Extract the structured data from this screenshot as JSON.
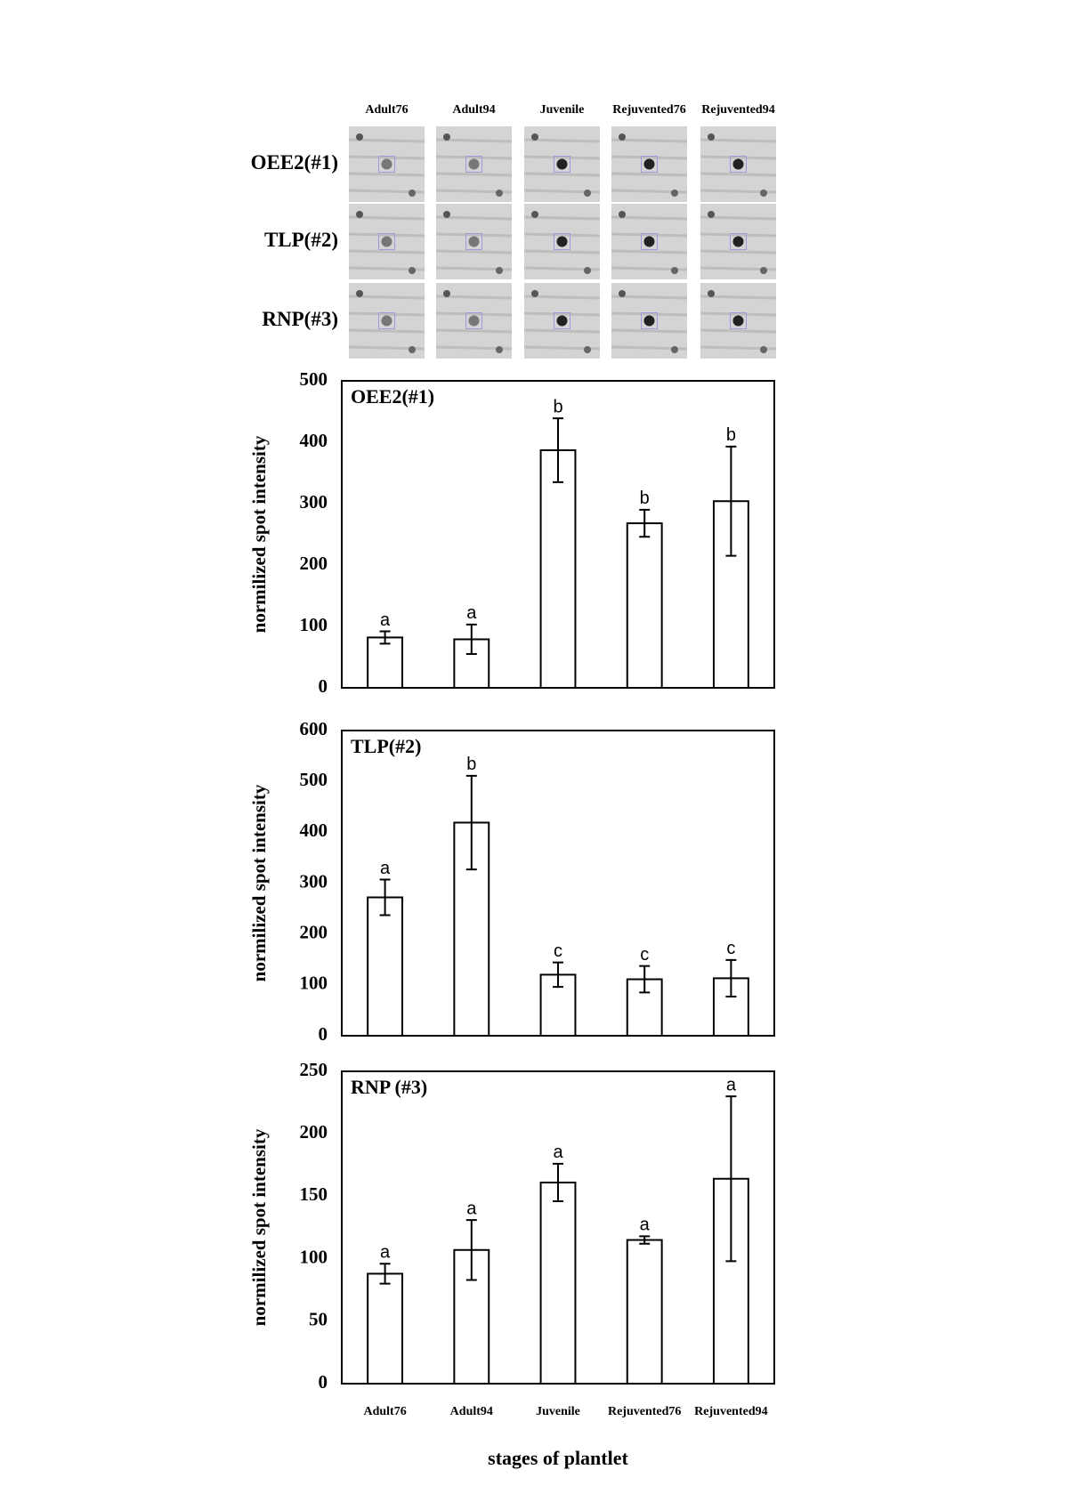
{
  "gel": {
    "columns": [
      "Adult76",
      "Adult94",
      "Juvenile",
      "Rejuvented76",
      "Rejuvented94"
    ],
    "rows": [
      "OEE2(#1)",
      "TLP(#2)",
      "RNP(#3)"
    ]
  },
  "chart_data": [
    {
      "type": "bar",
      "title": "OEE2(#1)",
      "ylabel": "normilized spot intensity",
      "values": [
        82,
        79,
        387,
        268,
        304
      ],
      "errors": [
        10,
        24,
        52,
        22,
        89
      ],
      "letters": [
        "a",
        "a",
        "b",
        "b",
        "b"
      ],
      "ylim": [
        0,
        500
      ],
      "yticks": [
        0,
        100,
        200,
        300,
        400,
        500
      ],
      "color": "#ffffff"
    },
    {
      "type": "bar",
      "title": "TLP(#2)",
      "ylabel": "normilized spot intensity",
      "values": [
        272,
        419,
        120,
        111,
        113
      ],
      "errors": [
        35,
        92,
        24,
        26,
        36
      ],
      "letters": [
        "a",
        "b",
        "c",
        "c",
        "c"
      ],
      "ylim": [
        0,
        600
      ],
      "yticks": [
        0,
        100,
        200,
        300,
        400,
        500,
        600
      ],
      "color": "#ffffff"
    },
    {
      "type": "bar",
      "title": "RNP (#3)",
      "ylabel": "normilized spot intensity",
      "xlabel": "stages of plantlet",
      "categories": [
        "Adult76",
        "Adult94",
        "Juvenile",
        "Rejuvented76",
        "Rejuvented94"
      ],
      "values": [
        88,
        107,
        161,
        115,
        164
      ],
      "errors": [
        8,
        24,
        15,
        3,
        66
      ],
      "letters": [
        "a",
        "a",
        "a",
        "a",
        "a"
      ],
      "ylim": [
        0,
        250
      ],
      "yticks": [
        0,
        50,
        100,
        150,
        200,
        250
      ],
      "color": "#ffffff"
    }
  ]
}
